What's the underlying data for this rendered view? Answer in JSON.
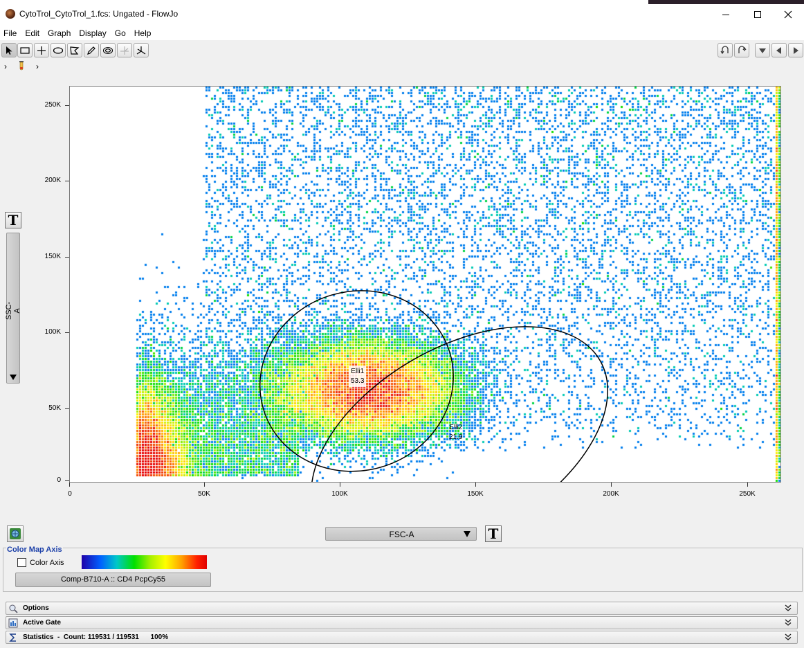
{
  "window": {
    "title": "CytoTrol_CytoTrol_1.fcs: Ungated - FlowJo"
  },
  "menu": [
    "File",
    "Edit",
    "Graph",
    "Display",
    "Go",
    "Help"
  ],
  "toolbar": {
    "tools": [
      "pointer-tool-icon",
      "rectangle-gate-icon",
      "quadrant-gate-icon",
      "ellipse-gate-icon",
      "polygon-gate-icon",
      "freehand-gate-icon",
      "auto-gate-icon",
      "spider-gate-disabled-icon",
      "spider-gate-icon"
    ],
    "nav": [
      "undo-icon",
      "redo-icon",
      "down-arrow-icon",
      "previous-arrow-icon",
      "next-arrow-icon"
    ]
  },
  "breadcrumb": {
    "left_chevron": "›",
    "right_chevron": "›"
  },
  "plot": {
    "x_param": "FSC-A",
    "y_param": "SSC-A",
    "y_ticks": [
      "250K",
      "200K",
      "150K",
      "100K",
      "50K",
      "0"
    ],
    "x_ticks": [
      "0",
      "50K",
      "100K",
      "150K",
      "200K",
      "250K"
    ],
    "text_button": "T",
    "gates": [
      {
        "name": "Elli1",
        "value": "53.3",
        "center_fsc": 106000,
        "center_ssc": 66000,
        "rx_fsc": 36000,
        "ry_ssc": 59000,
        "angle_deg": -18
      },
      {
        "name": "Elli2",
        "value": "21.9",
        "center_fsc": 144000,
        "center_ssc": 26000,
        "rx_fsc": 60000,
        "ry_ssc": 62000,
        "angle_deg": -30
      }
    ]
  },
  "chart_data": {
    "type": "heatmap",
    "x_param": "FSC-A",
    "y_param": "SSC-A",
    "x_ticks": [
      "0",
      "50K",
      "100K",
      "150K",
      "200K",
      "250K"
    ],
    "y_ticks": [
      "0",
      "50K",
      "100K",
      "150K",
      "200K",
      "250K"
    ],
    "xlim": [
      0,
      262144
    ],
    "ylim": [
      0,
      262144
    ],
    "density_clusters": [
      {
        "fsc": 110000,
        "ssc": 60000,
        "peak": 1.0
      },
      {
        "fsc": 28000,
        "ssc": 25000,
        "peak": 1.0
      }
    ],
    "gates": [
      {
        "name": "Elli1",
        "percent": 53.3
      },
      {
        "name": "Elli2",
        "percent": 21.9
      }
    ]
  },
  "color_map": {
    "legend": "Color Map Axis",
    "checkbox_label": "Color Axis",
    "checked": false,
    "parameter": "Comp-B710-A :: CD4 PcpCy55"
  },
  "panels": {
    "options": "Options",
    "active_gate": "Active Gate",
    "statistics": "Statistics  -  Count: 119531 / 119531      100%"
  },
  "colors": {
    "accent": "#1b3fa8",
    "gate_stroke": "#000000"
  }
}
